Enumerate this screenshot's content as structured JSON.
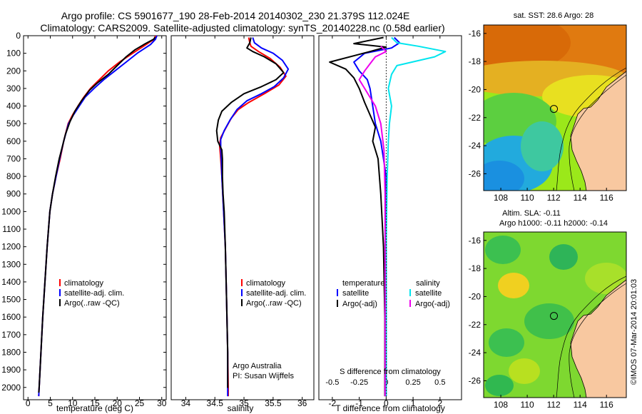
{
  "header": {
    "line1": "Argo profile: CS 5901677_190 28-Feb-2014 20140302_230 21.379S 112.024E",
    "line2": "Climatology: CARS2009. Satellite-adjusted climatology: synTS_20140228.nc (0.58d earlier)"
  },
  "colors": {
    "climatology": "#ff0000",
    "satellite": "#0000ff",
    "argo": "#000000",
    "s_satellite": "#00e5ee",
    "s_argo": "#ee00ee",
    "land": "#f8c8a0"
  },
  "chart_data": [
    {
      "id": "temperature",
      "type": "line",
      "xlabel": "temperature (deg C)",
      "ylabel": "",
      "xlim": [
        -1,
        31
      ],
      "ylim": [
        2070,
        0
      ],
      "xticks": [
        "0",
        "5",
        "10",
        "15",
        "20",
        "25",
        "30"
      ],
      "xtick_values": [
        0,
        5,
        10,
        15,
        20,
        25,
        30
      ],
      "yticks": [
        "0",
        "100",
        "200",
        "300",
        "400",
        "500",
        "600",
        "700",
        "800",
        "900",
        "1000",
        "1100",
        "1200",
        "1300",
        "1400",
        "1500",
        "1600",
        "1700",
        "1800",
        "1900",
        "2000"
      ],
      "legend": [
        "climatology",
        "satellite-adj. clim.",
        "Argo(..raw -QC)"
      ],
      "series": [
        {
          "name": "climatology",
          "color": "#ff0000",
          "points": [
            [
              28.6,
              0
            ],
            [
              28.3,
              20
            ],
            [
              26.5,
              50
            ],
            [
              23.5,
              100
            ],
            [
              20.5,
              150
            ],
            [
              18,
              200
            ],
            [
              16,
              250
            ],
            [
              14,
              300
            ],
            [
              12.5,
              350
            ],
            [
              11.2,
              400
            ],
            [
              10,
              450
            ],
            [
              9,
              500
            ],
            [
              8,
              600
            ],
            [
              7.2,
              700
            ],
            [
              6.3,
              800
            ],
            [
              5.5,
              900
            ],
            [
              4.9,
              1000
            ],
            [
              4.3,
              1200
            ],
            [
              3.8,
              1400
            ],
            [
              3.3,
              1600
            ],
            [
              2.9,
              1800
            ],
            [
              2.5,
              2000
            ],
            [
              2.4,
              2050
            ]
          ]
        },
        {
          "name": "satellite-adj. clim.",
          "color": "#0000ff",
          "points": [
            [
              28.9,
              0
            ],
            [
              28.6,
              20
            ],
            [
              27.5,
              50
            ],
            [
              24.5,
              100
            ],
            [
              22,
              150
            ],
            [
              19.5,
              200
            ],
            [
              17,
              250
            ],
            [
              14.8,
              300
            ],
            [
              12.8,
              350
            ],
            [
              11.5,
              400
            ],
            [
              10.2,
              450
            ],
            [
              9.1,
              500
            ],
            [
              8,
              600
            ],
            [
              7.1,
              700
            ],
            [
              6.3,
              800
            ],
            [
              5.5,
              900
            ],
            [
              4.9,
              1000
            ],
            [
              4.3,
              1200
            ],
            [
              3.8,
              1400
            ],
            [
              3.3,
              1600
            ],
            [
              2.9,
              1800
            ],
            [
              2.5,
              2000
            ],
            [
              2.4,
              2050
            ]
          ]
        },
        {
          "name": "Argo(..raw -QC)",
          "color": "#000000",
          "points": [
            [
              28.5,
              8
            ],
            [
              28.2,
              20
            ],
            [
              26,
              50
            ],
            [
              24,
              80
            ],
            [
              22,
              120
            ],
            [
              20,
              170
            ],
            [
              18,
              220
            ],
            [
              15.5,
              270
            ],
            [
              13.8,
              310
            ],
            [
              12,
              370
            ],
            [
              10.5,
              430
            ],
            [
              9.4,
              490
            ],
            [
              8.4,
              560
            ],
            [
              7.6,
              640
            ],
            [
              7,
              700
            ],
            [
              6.2,
              800
            ],
            [
              5.5,
              900
            ],
            [
              4.9,
              1000
            ],
            [
              4.3,
              1200
            ],
            [
              3.8,
              1400
            ],
            [
              3.3,
              1600
            ],
            [
              2.9,
              1800
            ],
            [
              2.5,
              2000
            ],
            [
              2.4,
              2030
            ]
          ]
        }
      ]
    },
    {
      "id": "salinity",
      "type": "line",
      "xlabel": "salinity",
      "xlim": [
        33.75,
        36.2
      ],
      "ylim": [
        2070,
        0
      ],
      "xticks": [
        "34",
        "34.5",
        "35",
        "35.5",
        "36"
      ],
      "xtick_values": [
        34,
        34.5,
        35,
        35.5,
        36
      ],
      "legend": [
        "climatology",
        "satellite-adj. clim.",
        "Argo(..raw -QC)"
      ],
      "annotation": [
        "Argo Australia",
        "PI: Susan Wijffels"
      ],
      "series": [
        {
          "name": "climatology",
          "color": "#ff0000",
          "points": [
            [
              35.08,
              10
            ],
            [
              35.1,
              40
            ],
            [
              35.12,
              60
            ],
            [
              35.25,
              90
            ],
            [
              35.45,
              130
            ],
            [
              35.62,
              180
            ],
            [
              35.72,
              230
            ],
            [
              35.6,
              280
            ],
            [
              35.35,
              330
            ],
            [
              35.08,
              380
            ],
            [
              34.9,
              420
            ],
            [
              34.78,
              470
            ],
            [
              34.68,
              530
            ],
            [
              34.6,
              580
            ],
            [
              34.58,
              620
            ],
            [
              34.6,
              700
            ],
            [
              34.62,
              800
            ],
            [
              34.65,
              1000
            ],
            [
              34.68,
              1200
            ],
            [
              34.7,
              1500
            ],
            [
              34.72,
              1800
            ],
            [
              34.73,
              2000
            ],
            [
              34.73,
              2050
            ]
          ]
        },
        {
          "name": "satellite-adj. clim.",
          "color": "#0000ff",
          "points": [
            [
              35.15,
              10
            ],
            [
              35.18,
              40
            ],
            [
              35.3,
              70
            ],
            [
              35.5,
              100
            ],
            [
              35.66,
              140
            ],
            [
              35.76,
              190
            ],
            [
              35.68,
              240
            ],
            [
              35.52,
              290
            ],
            [
              35.3,
              330
            ],
            [
              35.05,
              370
            ],
            [
              34.88,
              420
            ],
            [
              34.76,
              480
            ],
            [
              34.66,
              540
            ],
            [
              34.6,
              590
            ],
            [
              34.6,
              640
            ],
            [
              34.61,
              700
            ],
            [
              34.62,
              800
            ],
            [
              34.65,
              1000
            ],
            [
              34.68,
              1200
            ],
            [
              34.7,
              1500
            ],
            [
              34.72,
              1800
            ],
            [
              34.72,
              2000
            ],
            [
              34.72,
              2050
            ]
          ]
        },
        {
          "name": "Argo(..raw -QC)",
          "color": "#000000",
          "points": [
            [
              35.12,
              10
            ],
            [
              35.1,
              40
            ],
            [
              35.05,
              70
            ],
            [
              35.15,
              90
            ],
            [
              35.35,
              120
            ],
            [
              35.55,
              160
            ],
            [
              35.68,
              210
            ],
            [
              35.55,
              250
            ],
            [
              35.3,
              290
            ],
            [
              35,
              330
            ],
            [
              34.78,
              380
            ],
            [
              34.62,
              430
            ],
            [
              34.56,
              480
            ],
            [
              34.53,
              540
            ],
            [
              34.55,
              600
            ],
            [
              34.62,
              650
            ],
            [
              34.63,
              700
            ],
            [
              34.63,
              800
            ],
            [
              34.64,
              900
            ],
            [
              34.66,
              1000
            ],
            [
              34.68,
              1200
            ],
            [
              34.7,
              1500
            ],
            [
              34.72,
              1800
            ],
            [
              34.72,
              2000
            ],
            [
              34.72,
              1990
            ]
          ]
        }
      ]
    },
    {
      "id": "difference",
      "type": "line",
      "xlabel": "T difference from climatology",
      "xlabel_top": "S difference from climatology",
      "xlim": [
        -2.5,
        2.8
      ],
      "ylim": [
        2070,
        0
      ],
      "xticks": [
        "-2",
        "-1",
        "0",
        "1",
        "2"
      ],
      "xtick_values": [
        -2,
        -1,
        0,
        1,
        2
      ],
      "s_xticks": [
        "-0.5",
        "-0.25",
        "0",
        "0.25",
        "0.5"
      ],
      "s_xtick_values": [
        -0.5,
        -0.25,
        0,
        0.25,
        0.5
      ],
      "legend_t_title": "temperature",
      "legend_s_title": "salinity",
      "legend_t": [
        "satellite",
        "Argo(-adj)"
      ],
      "legend_s": [
        "satellite",
        "Argo(-adj)"
      ],
      "series": [
        {
          "name": "T satellite",
          "color": "#0000ff",
          "points": [
            [
              0.3,
              10
            ],
            [
              0.5,
              40
            ],
            [
              0.2,
              70
            ],
            [
              -0.8,
              100
            ],
            [
              -1.2,
              150
            ],
            [
              -1,
              200
            ],
            [
              -0.7,
              250
            ],
            [
              -0.6,
              300
            ],
            [
              -0.5,
              400
            ],
            [
              -0.4,
              500
            ],
            [
              -0.2,
              600
            ],
            [
              -0.1,
              700
            ],
            [
              0,
              800
            ],
            [
              0,
              2050
            ]
          ]
        },
        {
          "name": "T Argo(-adj)",
          "color": "#000000",
          "points": [
            [
              -0.1,
              10
            ],
            [
              -1.2,
              45
            ],
            [
              0,
              65
            ],
            [
              -0.6,
              90
            ],
            [
              -2.1,
              150
            ],
            [
              -1.5,
              190
            ],
            [
              -1.2,
              240
            ],
            [
              -1,
              300
            ],
            [
              -0.8,
              380
            ],
            [
              -0.6,
              450
            ],
            [
              -0.4,
              520
            ],
            [
              -0.5,
              600
            ],
            [
              -0.3,
              700
            ],
            [
              -0.2,
              900
            ],
            [
              -0.1,
              1200
            ],
            [
              -0.05,
              1600
            ],
            [
              -0.05,
              2050
            ]
          ]
        },
        {
          "name": "S satellite",
          "color": "#00e5ee",
          "points": [
            [
              0.05,
              10
            ],
            [
              0.1,
              40
            ],
            [
              0.3,
              60
            ],
            [
              0.55,
              90
            ],
            [
              0.45,
              120
            ],
            [
              0.1,
              170
            ],
            [
              0.05,
              220
            ],
            [
              0.02,
              300
            ],
            [
              0.05,
              400
            ],
            [
              0.03,
              500
            ],
            [
              0.02,
              600
            ],
            [
              0.01,
              800
            ],
            [
              0,
              1200
            ],
            [
              0,
              2050
            ]
          ]
        },
        {
          "name": "S Argo(-adj)",
          "color": "#ee00ee",
          "points": [
            [
              -0.05,
              60
            ],
            [
              0,
              90
            ],
            [
              -0.1,
              120
            ],
            [
              -0.15,
              160
            ],
            [
              -0.2,
              200
            ],
            [
              -0.25,
              250
            ],
            [
              -0.2,
              300
            ],
            [
              -0.1,
              400
            ],
            [
              -0.05,
              500
            ],
            [
              -0.02,
              650
            ],
            [
              -0.01,
              900
            ],
            [
              -0.01,
              1400
            ],
            [
              -0.01,
              2050
            ]
          ]
        }
      ]
    },
    {
      "id": "sst_map",
      "type": "heatmap",
      "title": "sat. SST: 28.6  Argo: 28",
      "xticks": [
        "108",
        "110",
        "112",
        "114",
        "116"
      ],
      "xtick_values": [
        108,
        110,
        112,
        114,
        116
      ],
      "yticks": [
        "-16",
        "-18",
        "-20",
        "-22",
        "-24",
        "-26"
      ],
      "ytick_values": [
        -16,
        -18,
        -20,
        -22,
        -24,
        -26
      ],
      "xlim": [
        106.7,
        117.5
      ],
      "ylim": [
        -27.2,
        -15.4
      ],
      "argo_position": [
        112.02,
        -21.38
      ]
    },
    {
      "id": "sla_map",
      "type": "heatmap",
      "title_line1": "Altim. SLA: -0.11",
      "title_line2": "Argo h1000: -0.11 h2000: -0.14",
      "xticks": [
        "108",
        "110",
        "112",
        "114",
        "116"
      ],
      "xtick_values": [
        108,
        110,
        112,
        114,
        116
      ],
      "yticks": [
        "-16",
        "-18",
        "-20",
        "-22",
        "-24",
        "-26"
      ],
      "ytick_values": [
        -16,
        -18,
        -20,
        -22,
        -24,
        -26
      ],
      "xlim": [
        106.7,
        117.5
      ],
      "ylim": [
        -27.2,
        -15.4
      ],
      "argo_position": [
        112.02,
        -21.38
      ]
    }
  ],
  "footer": {
    "stamp": "©IMOS 07-Mar-2014 20:01:03"
  }
}
